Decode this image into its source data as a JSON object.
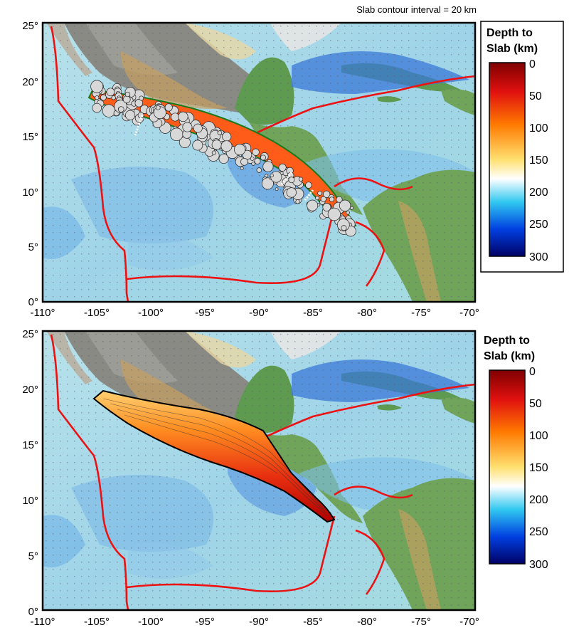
{
  "header": {
    "contour_note": "Slab contour interval = 20 km"
  },
  "axes": {
    "x_ticks": [
      "-110°",
      "-105°",
      "-100°",
      "-95°",
      "-90°",
      "-85°",
      "-80°",
      "-75°",
      "-70°"
    ],
    "y_ticks": [
      "0°",
      "5°",
      "10°",
      "15°",
      "20°",
      "25°"
    ],
    "lon_range": [
      -110,
      -70
    ],
    "lat_range": [
      0,
      25
    ]
  },
  "legend": {
    "title_line1": "Depth to",
    "title_line2": "Slab (km)",
    "ticks": [
      "0",
      "50",
      "100",
      "150",
      "200",
      "250",
      "300"
    ],
    "colors": [
      "#7f0000",
      "#e01010",
      "#ff7a00",
      "#ffe070",
      "#ffffff",
      "#30c8f0",
      "#0040e0",
      "#000066"
    ]
  },
  "panels": [
    {
      "name": "top",
      "content": "earthquake-hypocenters-and-slab"
    },
    {
      "name": "bottom",
      "content": "slab-depth-contours"
    }
  ],
  "colors": {
    "plate_boundary": "#ee1111",
    "land_green": "#5e9a50",
    "ocean_light": "#a8d8e6",
    "deep_ocean": "#2f6fd8"
  }
}
